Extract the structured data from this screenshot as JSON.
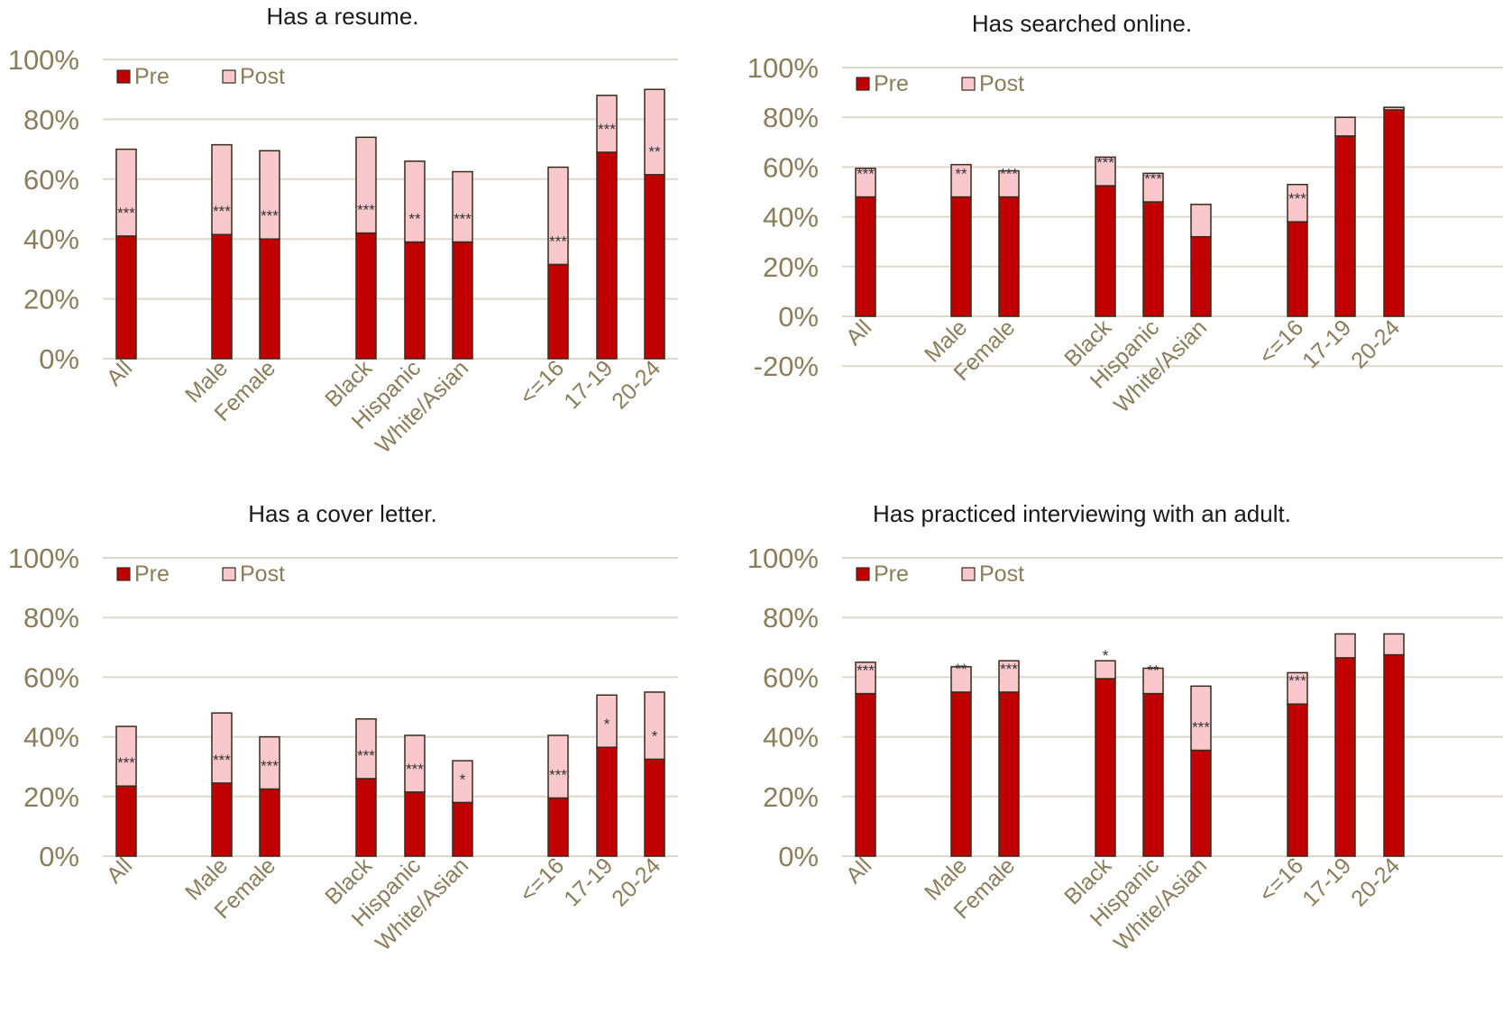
{
  "colors": {
    "pre": "#c00000",
    "post": "#f8c8cc",
    "outline": "#3a2a1a",
    "grid": "#ddd8cc",
    "tick": "#8b7d5b"
  },
  "legend": {
    "pre": "Pre",
    "post": "Post"
  },
  "chart_data": [
    {
      "type": "bar",
      "stacked": true,
      "title": "Has a resume.",
      "categories": [
        "All",
        "Male",
        "Female",
        "Black",
        "Hispanic",
        "White/Asian",
        "<=16",
        "17-19",
        "20-24"
      ],
      "yticks": [
        "0%",
        "20%",
        "40%",
        "60%",
        "80%",
        "100%"
      ],
      "ylim": [
        0,
        100
      ],
      "series": [
        {
          "name": "Pre",
          "values": [
            41,
            41.5,
            40,
            42,
            39,
            39,
            31.5,
            69,
            61.5
          ]
        },
        {
          "name": "Post",
          "values": [
            29,
            30,
            29.5,
            32,
            27,
            23.5,
            32.5,
            19,
            28.5
          ]
        }
      ],
      "annotations": [
        "***",
        "***",
        "***",
        "***",
        "**",
        "***",
        "***",
        "***",
        "**"
      ],
      "legend_position": "top-left",
      "grid": true
    },
    {
      "type": "bar",
      "stacked": true,
      "title": "Has searched online.",
      "categories": [
        "All",
        "Male",
        "Female",
        "Black",
        "Hispanic",
        "White/Asian",
        "<=16",
        "17-19",
        "20-24"
      ],
      "yticks": [
        "-20%",
        "0%",
        "20%",
        "40%",
        "60%",
        "80%",
        "100%"
      ],
      "ylim": [
        -20,
        100
      ],
      "series": [
        {
          "name": "Pre",
          "values": [
            48,
            48,
            48,
            52.5,
            46,
            32,
            38,
            72.5,
            84
          ]
        },
        {
          "name": "Post",
          "values": [
            11.5,
            13,
            10.5,
            11.5,
            11.5,
            13,
            15,
            7.5,
            -1
          ]
        }
      ],
      "annotations": [
        "***",
        "**",
        "***",
        "***",
        "***",
        "",
        "***",
        "",
        ""
      ],
      "legend_position": "top-left",
      "grid": true
    },
    {
      "type": "bar",
      "stacked": true,
      "title": "Has a cover letter.",
      "categories": [
        "All",
        "Male",
        "Female",
        "Black",
        "Hispanic",
        "White/Asian",
        "<=16",
        "17-19",
        "20-24"
      ],
      "yticks": [
        "0%",
        "20%",
        "40%",
        "60%",
        "80%",
        "100%"
      ],
      "ylim": [
        0,
        100
      ],
      "series": [
        {
          "name": "Pre",
          "values": [
            23.5,
            24.5,
            22.5,
            26,
            21.5,
            18,
            19.5,
            36.5,
            32.5
          ]
        },
        {
          "name": "Post",
          "values": [
            20,
            23.5,
            17.5,
            20,
            19,
            14,
            21,
            17.5,
            22.5
          ]
        }
      ],
      "annotations": [
        "***",
        "***",
        "***",
        "***",
        "***",
        "*",
        "***",
        "*",
        "*"
      ],
      "legend_position": "top-left",
      "grid": true
    },
    {
      "type": "bar",
      "stacked": true,
      "title": "Has practiced interviewing with an adult.",
      "categories": [
        "All",
        "Male",
        "Female",
        "Black",
        "Hispanic",
        "White/Asian",
        "<=16",
        "17-19",
        "20-24"
      ],
      "yticks": [
        "0%",
        "20%",
        "40%",
        "60%",
        "80%",
        "100%"
      ],
      "ylim": [
        0,
        100
      ],
      "series": [
        {
          "name": "Pre",
          "values": [
            54.5,
            55,
            55,
            59.5,
            54.5,
            35.5,
            51,
            66.5,
            67.5
          ]
        },
        {
          "name": "Post",
          "values": [
            10.5,
            8.5,
            10.5,
            6,
            8.5,
            21.5,
            10.5,
            8,
            7
          ]
        }
      ],
      "annotations": [
        "***",
        "**",
        "***",
        "*",
        "**",
        "***",
        "***",
        "",
        ""
      ],
      "legend_position": "top-left",
      "grid": true
    }
  ]
}
